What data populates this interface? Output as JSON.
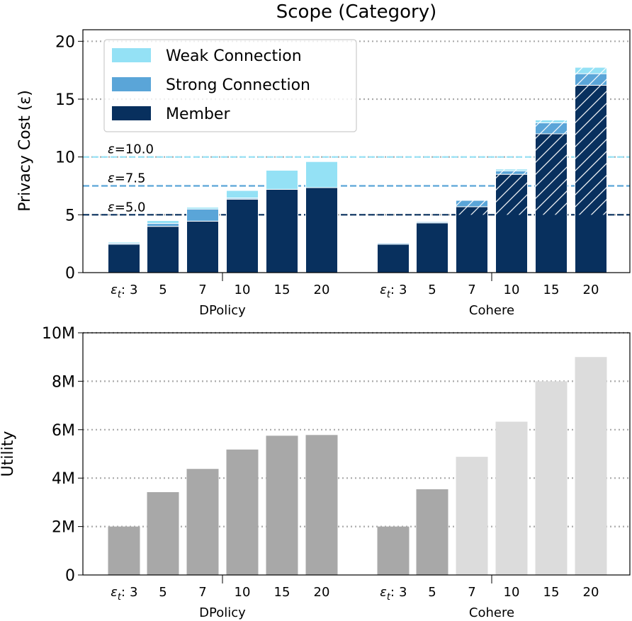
{
  "chart_data": [
    {
      "type": "bar",
      "stacked": true,
      "title": "Scope (Category)",
      "ylabel": "Privacy Cost (ε)",
      "ylim": [
        0,
        21
      ],
      "yticks": [
        0,
        5,
        10,
        15,
        20
      ],
      "grid": "horizontal dotted",
      "legend_placement": "top-left",
      "groups": [
        "DPolicy",
        "Cohere"
      ],
      "tick_prefix": "ε_t:",
      "categories": [
        "3",
        "5",
        "7",
        "10",
        "15",
        "20"
      ],
      "series": [
        {
          "name": "Member",
          "color": "#08305e",
          "values": {
            "DPolicy": [
              2.45,
              4.0,
              4.45,
              6.35,
              7.2,
              7.35
            ],
            "Cohere": [
              2.45,
              4.3,
              5.7,
              8.5,
              12.0,
              16.2
            ]
          }
        },
        {
          "name": "Strong Connection",
          "color": "#5aa5d8",
          "values": {
            "DPolicy": [
              0.1,
              0.25,
              1.05,
              0.1,
              0.0,
              0.0
            ],
            "Cohere": [
              0.1,
              0.1,
              0.55,
              0.3,
              0.95,
              1.0
            ]
          }
        },
        {
          "name": "Weak Connection",
          "color": "#94e1f5",
          "values": {
            "DPolicy": [
              0.1,
              0.25,
              0.15,
              0.65,
              1.65,
              2.25
            ],
            "Cohere": [
              0.05,
              0.05,
              0.05,
              0.15,
              0.25,
              0.55
            ]
          }
        }
      ],
      "hatch_above": 5.0,
      "hatch_groups": [
        "Cohere"
      ],
      "thresholds": [
        {
          "label": "ε=10.0",
          "value": 10.0,
          "color": "#94e1f5"
        },
        {
          "label": "ε=7.5",
          "value": 7.5,
          "color": "#5aa5d8"
        },
        {
          "label": "ε=5.0",
          "value": 5.0,
          "color": "#08305e"
        }
      ]
    },
    {
      "type": "bar",
      "ylabel": "Utility",
      "ylim": [
        0,
        10000000
      ],
      "yticks": [
        0,
        2000000,
        4000000,
        6000000,
        8000000,
        10000000
      ],
      "ytick_labels": [
        "0",
        "2M",
        "4M",
        "6M",
        "8M",
        "10M"
      ],
      "grid": "horizontal dotted",
      "groups": [
        "DPolicy",
        "Cohere"
      ],
      "tick_prefix": "ε_t:",
      "categories": [
        "3",
        "5",
        "7",
        "10",
        "15",
        "20"
      ],
      "values": {
        "DPolicy": [
          2000000,
          3420000,
          4380000,
          5180000,
          5750000,
          5780000
        ],
        "Cohere": [
          2000000,
          3540000,
          4880000,
          6330000,
          8000000,
          9000000
        ]
      },
      "colors": {
        "DPolicy": [
          "#a8a8a8",
          "#a8a8a8",
          "#a8a8a8",
          "#a8a8a8",
          "#a8a8a8",
          "#a8a8a8"
        ],
        "Cohere": [
          "#a8a8a8",
          "#a8a8a8",
          "#dcdcdc",
          "#dcdcdc",
          "#dcdcdc",
          "#dcdcdc"
        ]
      }
    }
  ]
}
